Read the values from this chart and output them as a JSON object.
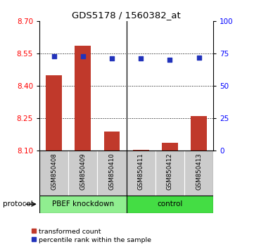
{
  "title": "GDS5178 / 1560382_at",
  "samples": [
    "GSM850408",
    "GSM850409",
    "GSM850410",
    "GSM850411",
    "GSM850412",
    "GSM850413"
  ],
  "bar_values": [
    8.45,
    8.585,
    8.19,
    8.105,
    8.135,
    8.26
  ],
  "bar_bottom": 8.1,
  "percentile_values": [
    73,
    73,
    71,
    71,
    70,
    72
  ],
  "ylim_left": [
    8.1,
    8.7
  ],
  "ylim_right": [
    0,
    100
  ],
  "yticks_left": [
    8.1,
    8.25,
    8.4,
    8.55,
    8.7
  ],
  "yticks_right": [
    0,
    25,
    50,
    75,
    100
  ],
  "bar_color": "#c0392b",
  "percentile_color": "#2233bb",
  "background_color": "#ffffff",
  "plot_bg_color": "#ffffff",
  "groups": [
    {
      "label": "PBEF knockdown",
      "color": "#90EE90"
    },
    {
      "label": "control",
      "color": "#44DD44"
    }
  ],
  "protocol_label": "protocol",
  "legend_items": [
    {
      "label": "transformed count",
      "color": "#c0392b"
    },
    {
      "label": "percentile rank within the sample",
      "color": "#2233bb"
    }
  ],
  "bar_width": 0.55,
  "n_samples": 6,
  "label_area_color": "#cccccc",
  "divider_color": "#000000"
}
